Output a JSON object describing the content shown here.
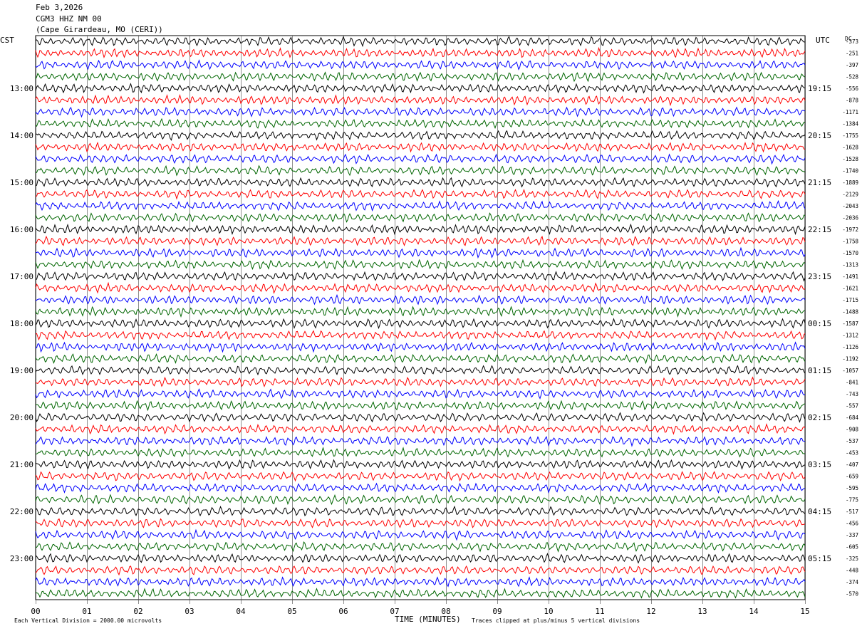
{
  "header": {
    "date": "Feb 3,2026",
    "station": "CGM3 HHZ NM 00",
    "location": "(Cape Girardeau, MO (CERI))"
  },
  "left_tz": "CST",
  "right_tz": "UTC",
  "dc_label": "DC",
  "footer": {
    "scale_note": "Each Vertical Division = 2000.00 microvolts",
    "xlabel": "TIME (MINUTES)",
    "clip_note": "Traces clipped at plus/minus 5 vertical divisions"
  },
  "colors": {
    "trace_cycle": [
      "#000000",
      "#ff0000",
      "#0000ff",
      "#006600"
    ],
    "grid": "#000000"
  },
  "chart_data": {
    "type": "line",
    "x_ticks": [
      "00",
      "01",
      "02",
      "03",
      "04",
      "05",
      "06",
      "07",
      "08",
      "09",
      "10",
      "11",
      "12",
      "13",
      "14",
      "15"
    ],
    "xlim": [
      0,
      15
    ],
    "left_hour_labels": [
      "13:00",
      "14:00",
      "15:00",
      "16:00",
      "17:00",
      "18:00",
      "19:00",
      "20:00",
      "21:00",
      "22:00",
      "23:00"
    ],
    "right_hour_labels": [
      "19:15",
      "20:15",
      "21:15",
      "22:15",
      "23:15",
      "00:15",
      "01:15",
      "02:15",
      "03:15",
      "04:15",
      "05:15"
    ],
    "dc_offsets": [
      -373,
      -251,
      -397,
      -528,
      -556,
      -878,
      -1171,
      -1384,
      -1755,
      -1628,
      -1528,
      -1740,
      -1889,
      -2129,
      -2043,
      -2036,
      -1972,
      -1758,
      -1570,
      -1313,
      -1491,
      -1621,
      -1715,
      -1488,
      -1587,
      -1312,
      -1126,
      -1192,
      -1057,
      -841,
      -743,
      -557,
      -684,
      -908,
      -537,
      -453,
      -407,
      -659,
      -595,
      -775,
      -517,
      -456,
      -337,
      -605,
      -325,
      -448,
      -374,
      -570
    ],
    "traces_per_row_minutes": 15,
    "grid": true
  }
}
